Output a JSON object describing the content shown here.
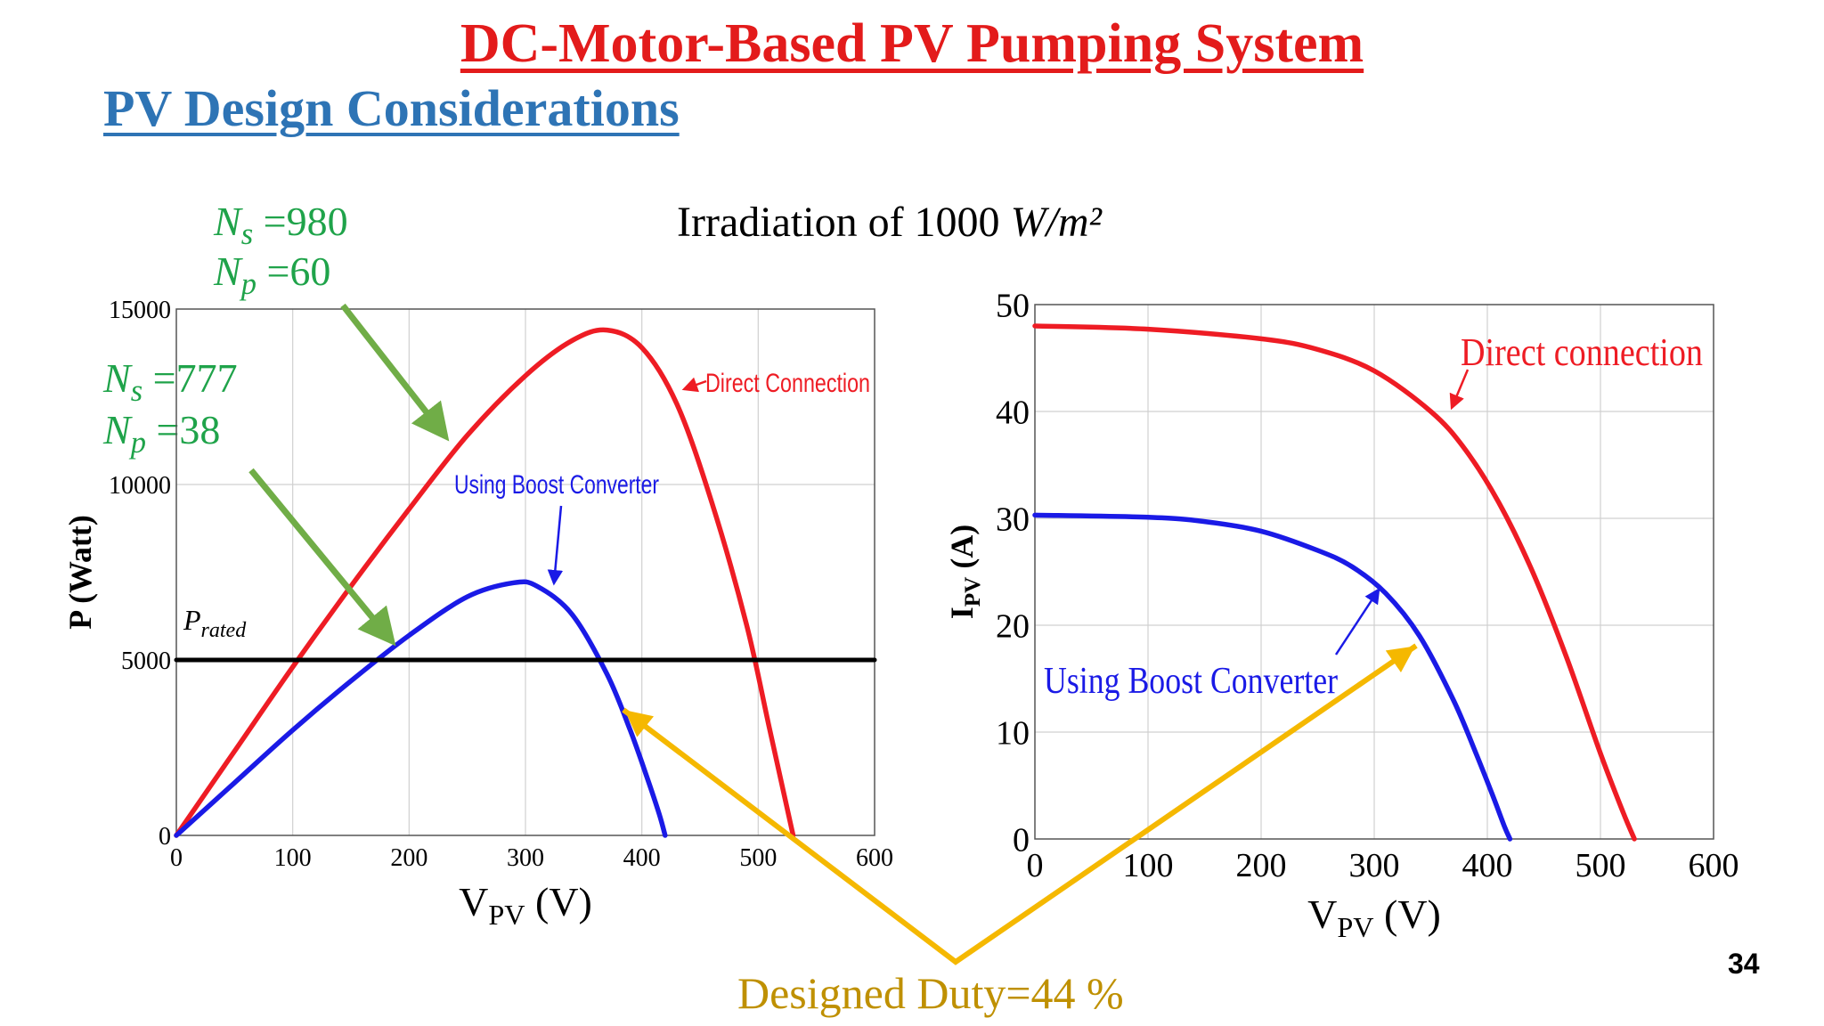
{
  "header": {
    "title": "DC-Motor-Based PV Pumping System",
    "subtitle": "PV Design Considerations"
  },
  "chart_header": {
    "irradiation_prefix": "Irradiation of 1000 ",
    "irradiation_unit": "W/m²"
  },
  "annotations": {
    "direct_ns": "N_s =980",
    "direct_np": "N_p =60",
    "boost_ns": "N_s =777",
    "boost_np": "N_p =38",
    "p_rated": "P_rated",
    "duty": "Designed Duty=44 %",
    "page_number": "34"
  },
  "colors": {
    "title_red": "#e31b1b",
    "subtitle_blue": "#2e74b5",
    "direct_red": "#ee1c24",
    "boost_blue": "#1a1ae6",
    "annotation_green": "#1fa34a",
    "arrow_green": "#70ad47",
    "duty_gold": "#f5b800",
    "duty_text": "#bf9000"
  },
  "chart_data": [
    {
      "type": "line",
      "xlabel": "V_PV (V)",
      "ylabel": "P (Watt)",
      "xlim": [
        0,
        600
      ],
      "ylim": [
        0,
        15000
      ],
      "xticks": [
        0,
        100,
        200,
        300,
        400,
        500,
        600
      ],
      "yticks": [
        0,
        5000,
        10000,
        15000
      ],
      "grid": true,
      "series": [
        {
          "name": "Direct Connection",
          "color": "#ee1c24",
          "x": [
            0,
            50,
            100,
            150,
            200,
            250,
            300,
            340,
            370,
            400,
            430,
            460,
            490,
            510,
            530
          ],
          "y": [
            0,
            2400,
            4800,
            7100,
            9300,
            11400,
            13100,
            14100,
            14400,
            13900,
            12300,
            9500,
            6000,
            3000,
            0
          ]
        },
        {
          "name": "Using Boost Converter",
          "color": "#1a1ae6",
          "x": [
            0,
            50,
            100,
            150,
            200,
            250,
            290,
            310,
            340,
            370,
            390,
            405,
            415,
            420
          ],
          "y": [
            0,
            1500,
            3000,
            4400,
            5700,
            6800,
            7200,
            7100,
            6300,
            4600,
            3000,
            1600,
            600,
            0
          ]
        },
        {
          "name": "P_rated",
          "color": "#000000",
          "x": [
            0,
            600
          ],
          "y": [
            5000,
            5000
          ]
        }
      ]
    },
    {
      "type": "line",
      "xlabel": "V_PV (V)",
      "ylabel": "I_PV (A)",
      "xlim": [
        0,
        600
      ],
      "ylim": [
        0,
        50
      ],
      "xticks": [
        0,
        100,
        200,
        300,
        400,
        500,
        600
      ],
      "yticks": [
        0,
        10,
        20,
        30,
        40,
        50
      ],
      "grid": true,
      "series": [
        {
          "name": "Direct connection",
          "color": "#ee1c24",
          "x": [
            0,
            100,
            200,
            250,
            300,
            350,
            380,
            410,
            440,
            470,
            500,
            520,
            530
          ],
          "y": [
            48,
            47.7,
            46.8,
            45.8,
            43.8,
            40,
            36.5,
            31.5,
            25,
            17,
            8,
            2.5,
            0
          ]
        },
        {
          "name": "Using Boost Converter",
          "color": "#1a1ae6",
          "x": [
            0,
            100,
            150,
            200,
            250,
            280,
            310,
            340,
            370,
            390,
            405,
            415,
            420
          ],
          "y": [
            30.3,
            30.1,
            29.7,
            28.8,
            27,
            25.5,
            23,
            19,
            13,
            8,
            4,
            1.2,
            0
          ]
        }
      ]
    }
  ]
}
